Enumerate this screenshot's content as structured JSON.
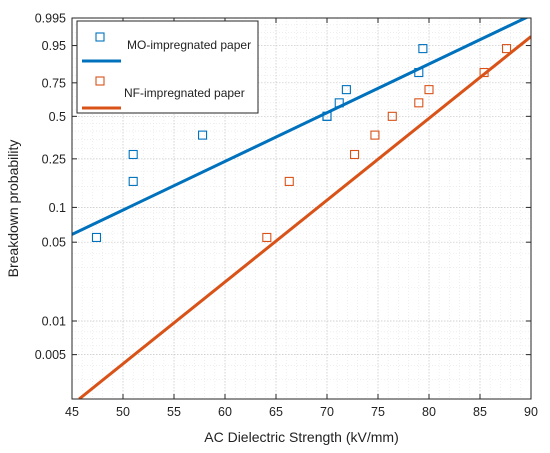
{
  "chart_data": {
    "type": "scatter",
    "title": "",
    "xlabel": "AC Dielectric Strength (kV/mm)",
    "ylabel": "Breakdown probability",
    "xlim": [
      45,
      90
    ],
    "x_ticks": [
      45,
      50,
      55,
      60,
      65,
      70,
      75,
      80,
      85,
      90
    ],
    "y_scale": "probability (Weibull)",
    "ylim": [
      0.002,
      0.995
    ],
    "y_ticks": [
      0.005,
      0.01,
      0.05,
      0.1,
      0.25,
      0.5,
      0.75,
      0.95,
      0.995
    ],
    "y_tick_labels": [
      "0.005",
      "0.01",
      "0.05",
      "0.1",
      "0.25",
      "0.5",
      "0.75",
      "0.95",
      "0.995"
    ],
    "grid": true,
    "legend_position": "top-left",
    "series": [
      {
        "name": "MO-impregnated paper",
        "color": "#0072bd",
        "marker": "square-open",
        "points": [
          {
            "x": 47.4,
            "y": 0.055
          },
          {
            "x": 51.0,
            "y": 0.165
          },
          {
            "x": 51.0,
            "y": 0.27
          },
          {
            "x": 57.8,
            "y": 0.375
          },
          {
            "x": 70.0,
            "y": 0.5
          },
          {
            "x": 70.0,
            "y": 0.5
          },
          {
            "x": 71.2,
            "y": 0.6
          },
          {
            "x": 71.9,
            "y": 0.7
          },
          {
            "x": 79.0,
            "y": 0.82
          },
          {
            "x": 79.4,
            "y": 0.94
          }
        ],
        "fit": {
          "x": [
            45,
            90
          ],
          "y": [
            0.0585,
            0.9963
          ]
        }
      },
      {
        "name": "NF-impregnated paper",
        "color": "#d95319",
        "marker": "square-open",
        "points": [
          {
            "x": 64.1,
            "y": 0.055
          },
          {
            "x": 66.3,
            "y": 0.165
          },
          {
            "x": 72.7,
            "y": 0.27
          },
          {
            "x": 74.7,
            "y": 0.375
          },
          {
            "x": 76.4,
            "y": 0.5
          },
          {
            "x": 79.0,
            "y": 0.6
          },
          {
            "x": 80.0,
            "y": 0.7
          },
          {
            "x": 85.4,
            "y": 0.82
          },
          {
            "x": 87.6,
            "y": 0.94
          }
        ],
        "fit": {
          "x": [
            45.7,
            90
          ],
          "y": [
            0.002,
            0.973
          ]
        }
      }
    ]
  }
}
